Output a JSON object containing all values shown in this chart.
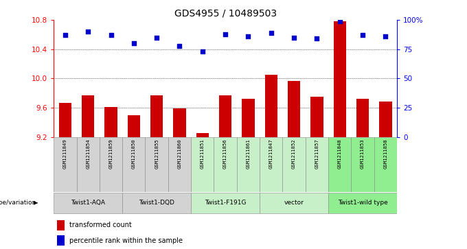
{
  "title": "GDS4955 / 10489503",
  "samples": [
    "GSM1211849",
    "GSM1211854",
    "GSM1211859",
    "GSM1211850",
    "GSM1211855",
    "GSM1211860",
    "GSM1211851",
    "GSM1211856",
    "GSM1211861",
    "GSM1211847",
    "GSM1211852",
    "GSM1211857",
    "GSM1211848",
    "GSM1211853",
    "GSM1211858"
  ],
  "bar_values": [
    9.67,
    9.77,
    9.61,
    9.5,
    9.77,
    9.59,
    9.25,
    9.77,
    9.72,
    10.05,
    9.97,
    9.75,
    10.78,
    9.72,
    9.68
  ],
  "dot_pct": [
    87,
    90,
    87,
    80,
    85,
    78,
    73,
    88,
    86,
    89,
    85,
    84,
    99,
    87,
    86
  ],
  "ymin": 9.2,
  "ymax": 10.8,
  "yticks": [
    9.2,
    9.6,
    10.0,
    10.4,
    10.8
  ],
  "right_yticks": [
    0,
    25,
    50,
    75,
    100
  ],
  "bar_color": "#cc0000",
  "dot_color": "#0000cc",
  "groups": [
    {
      "label": "Twist1-AQA",
      "indices": [
        0,
        1,
        2
      ],
      "color": "#d3d3d3"
    },
    {
      "label": "Twist1-DQD",
      "indices": [
        3,
        4,
        5
      ],
      "color": "#d3d3d3"
    },
    {
      "label": "Twist1-F191G",
      "indices": [
        6,
        7,
        8
      ],
      "color": "#c8f0c8"
    },
    {
      "label": "vector",
      "indices": [
        9,
        10,
        11
      ],
      "color": "#c8f0c8"
    },
    {
      "label": "Twist1-wild type",
      "indices": [
        12,
        13,
        14
      ],
      "color": "#90ee90"
    }
  ],
  "sample_bg_color": "#d3d3d3",
  "group_label": "genotype/variation",
  "legend_bar": "transformed count",
  "legend_dot": "percentile rank within the sample",
  "grid_yticks": [
    9.6,
    10.0,
    10.4
  ],
  "bar_base": 9.2,
  "yrange": 1.6
}
